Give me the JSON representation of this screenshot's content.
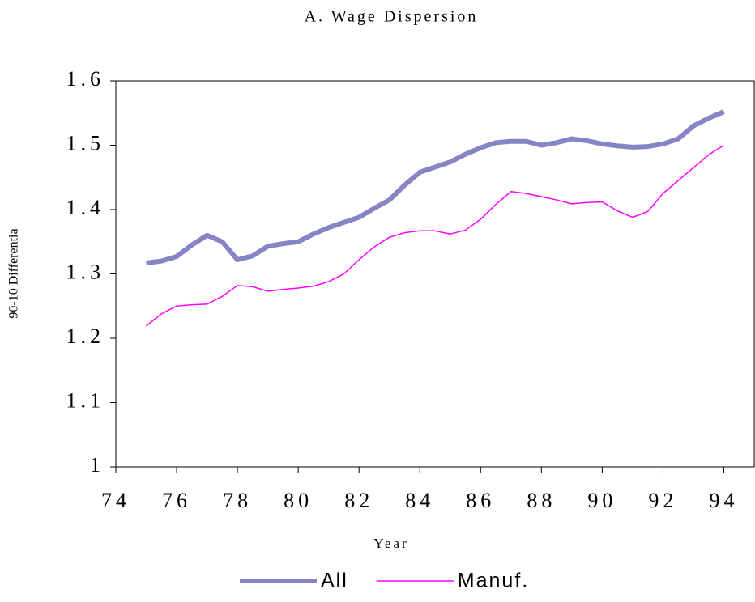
{
  "chart_data": {
    "type": "line",
    "title": "A. Wage Dispersion",
    "x_label": "Year",
    "y_label": "90-10 Differentia",
    "x": [
      75,
      75.5,
      76,
      76.5,
      77,
      77.5,
      78,
      78.5,
      79,
      79.5,
      80,
      80.5,
      81,
      81.5,
      82,
      82.5,
      83,
      83.5,
      84,
      84.5,
      85,
      85.5,
      86,
      86.5,
      87,
      87.5,
      88,
      88.5,
      89,
      89.5,
      90,
      90.5,
      91,
      91.5,
      92,
      92.5,
      93,
      93.5,
      94
    ],
    "series": [
      {
        "name": "All",
        "color": "#8585c6",
        "values": [
          1.317,
          1.32,
          1.327,
          1.345,
          1.36,
          1.35,
          1.322,
          1.328,
          1.343,
          1.347,
          1.35,
          1.362,
          1.372,
          1.38,
          1.388,
          1.402,
          1.415,
          1.438,
          1.458,
          1.466,
          1.474,
          1.486,
          1.496,
          1.504,
          1.506,
          1.506,
          1.5,
          1.504,
          1.51,
          1.507,
          1.502,
          1.499,
          1.497,
          1.498,
          1.502,
          1.51,
          1.53,
          1.542,
          1.552
        ]
      },
      {
        "name": "Manuf.",
        "color": "#ff00ff",
        "values": [
          1.219,
          1.238,
          1.25,
          1.252,
          1.253,
          1.265,
          1.282,
          1.28,
          1.273,
          1.276,
          1.278,
          1.281,
          1.288,
          1.3,
          1.322,
          1.342,
          1.357,
          1.364,
          1.367,
          1.367,
          1.362,
          1.368,
          1.385,
          1.408,
          1.428,
          1.425,
          1.42,
          1.415,
          1.409,
          1.411,
          1.412,
          1.398,
          1.388,
          1.397,
          1.425,
          1.445,
          1.465,
          1.485,
          1.5
        ]
      }
    ],
    "xlim": [
      74,
      95
    ],
    "xticks": [
      74,
      76,
      78,
      80,
      82,
      84,
      86,
      88,
      90,
      92,
      94
    ],
    "ylim": [
      1,
      1.6
    ],
    "yticks": [
      1,
      1.1,
      1.2,
      1.3,
      1.4,
      1.5,
      1.6
    ]
  }
}
